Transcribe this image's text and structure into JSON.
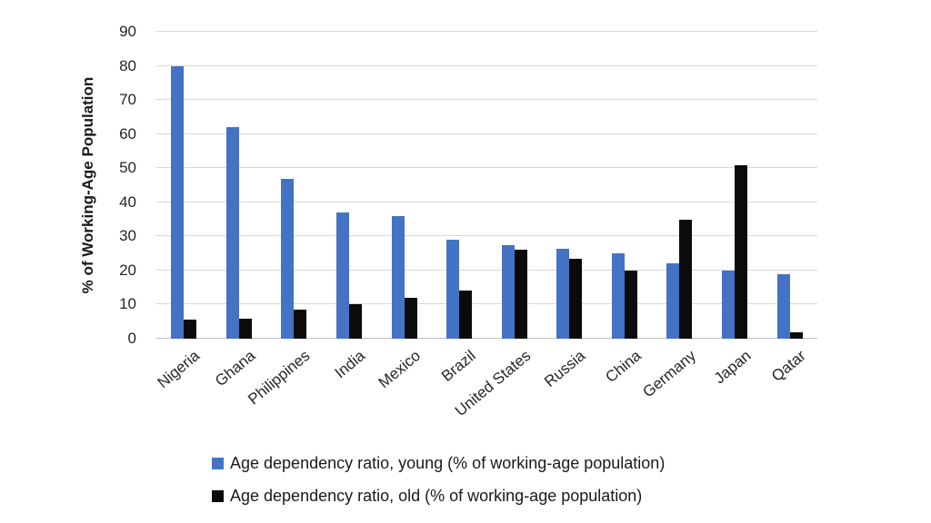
{
  "chart_data": {
    "type": "bar",
    "title": "",
    "ylabel": "% of Working-Age Population",
    "xlabel": "",
    "ylim": [
      0,
      90
    ],
    "ytick_step": 10,
    "grid": true,
    "legend_position": "bottom-left",
    "categories": [
      "Nigeria",
      "Ghana",
      "Philippines",
      "India",
      "Mexico",
      "Brazil",
      "United States",
      "Russia",
      "China",
      "Germany",
      "Japan",
      "Qatar"
    ],
    "series": [
      {
        "name": "Age dependency ratio, young (% of working-age population)",
        "color": "#4472c4",
        "values": [
          80,
          62,
          47,
          37,
          36,
          29,
          27.5,
          26.5,
          25,
          22,
          20,
          19
        ]
      },
      {
        "name": "Age dependency ratio, old (% of working-age population)",
        "color": "#0b0b0b",
        "values": [
          5.5,
          6,
          8.5,
          10,
          12,
          14,
          26,
          23.5,
          20,
          35,
          51,
          2
        ]
      }
    ]
  }
}
